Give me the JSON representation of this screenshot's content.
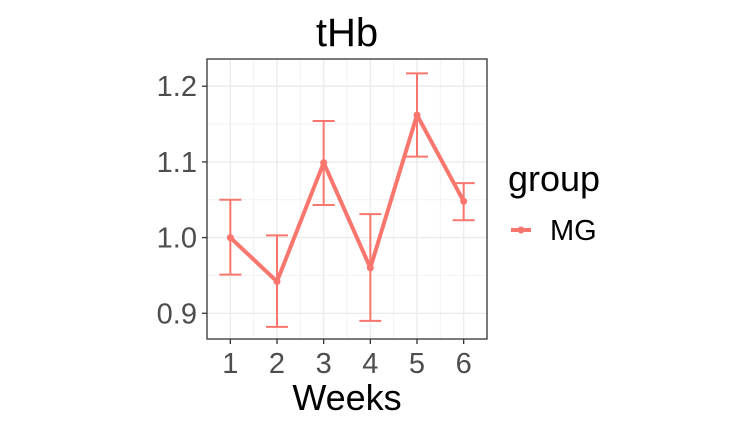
{
  "chart_data": {
    "type": "line",
    "title": "tHb",
    "xlabel": "Weeks",
    "ylabel": "",
    "x": [
      1,
      2,
      3,
      4,
      5,
      6
    ],
    "x_tick_labels": [
      "1",
      "2",
      "3",
      "4",
      "5",
      "6"
    ],
    "y_tick_labels": [
      "0.9",
      "1.0",
      "1.1",
      "1.2"
    ],
    "y_ticks": [
      0.9,
      1.0,
      1.1,
      1.2
    ],
    "xlim": [
      0.5,
      6.5
    ],
    "ylim": [
      0.866,
      1.236
    ],
    "grid": true,
    "legend": {
      "title": "group",
      "position": "right"
    },
    "series": [
      {
        "name": "MG",
        "color": "#f8766d",
        "values": [
          1.0,
          0.942,
          1.099,
          0.96,
          1.162,
          1.048
        ],
        "error_low": [
          0.951,
          0.882,
          1.043,
          0.89,
          1.107,
          1.023
        ],
        "error_high": [
          1.05,
          1.003,
          1.154,
          1.031,
          1.217,
          1.072
        ]
      }
    ]
  }
}
